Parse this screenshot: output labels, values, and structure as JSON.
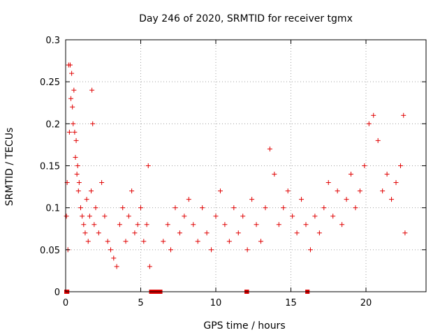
{
  "chart_data": {
    "type": "scatter",
    "title": "Day 246 of 2020, SRMTID for receiver tgmx",
    "xlabel": "GPS time / hours",
    "ylabel": "SRMTID / TECUs",
    "xlim": [
      0,
      24
    ],
    "ylim": [
      0,
      0.3
    ],
    "x_ticks": [
      0,
      5,
      10,
      15,
      20
    ],
    "x_tick_labels": [
      "0",
      "5",
      "10",
      "15",
      "20"
    ],
    "y_ticks": [
      0,
      0.05,
      0.1,
      0.15,
      0.2,
      0.25,
      0.3
    ],
    "y_tick_labels": [
      "0",
      "0.05",
      "0.1",
      "0.15",
      "0.2",
      "0.25",
      "0.3"
    ],
    "grid": true,
    "marker": "plus",
    "color": "#e00000",
    "series": [
      {
        "name": "SRMTID",
        "points": [
          [
            0.05,
            0.09
          ],
          [
            0.1,
            0.13
          ],
          [
            0.15,
            0.05
          ],
          [
            0.2,
            0.27
          ],
          [
            0.25,
            0.19
          ],
          [
            0.3,
            0.27
          ],
          [
            0.35,
            0.23
          ],
          [
            0.4,
            0.26
          ],
          [
            0.45,
            0.22
          ],
          [
            0.5,
            0.2
          ],
          [
            0.55,
            0.24
          ],
          [
            0.6,
            0.19
          ],
          [
            0.65,
            0.16
          ],
          [
            0.7,
            0.18
          ],
          [
            0.75,
            0.14
          ],
          [
            0.8,
            0.15
          ],
          [
            0.85,
            0.12
          ],
          [
            0.9,
            0.13
          ],
          [
            1.0,
            0.1
          ],
          [
            1.1,
            0.09
          ],
          [
            1.2,
            0.08
          ],
          [
            1.3,
            0.07
          ],
          [
            1.4,
            0.11
          ],
          [
            1.5,
            0.06
          ],
          [
            1.6,
            0.09
          ],
          [
            1.7,
            0.12
          ],
          [
            1.75,
            0.24
          ],
          [
            1.8,
            0.2
          ],
          [
            1.9,
            0.08
          ],
          [
            2.0,
            0.1
          ],
          [
            2.2,
            0.07
          ],
          [
            2.4,
            0.13
          ],
          [
            2.6,
            0.09
          ],
          [
            2.8,
            0.06
          ],
          [
            3.0,
            0.05
          ],
          [
            3.2,
            0.04
          ],
          [
            3.4,
            0.03
          ],
          [
            3.6,
            0.08
          ],
          [
            3.8,
            0.1
          ],
          [
            4.0,
            0.06
          ],
          [
            4.2,
            0.09
          ],
          [
            4.4,
            0.12
          ],
          [
            4.6,
            0.07
          ],
          [
            4.8,
            0.08
          ],
          [
            5.0,
            0.1
          ],
          [
            5.2,
            0.06
          ],
          [
            5.4,
            0.08
          ],
          [
            5.5,
            0.15
          ],
          [
            5.6,
            0.03
          ],
          [
            6.5,
            0.06
          ],
          [
            6.8,
            0.08
          ],
          [
            7.0,
            0.05
          ],
          [
            7.3,
            0.1
          ],
          [
            7.6,
            0.07
          ],
          [
            7.9,
            0.09
          ],
          [
            8.2,
            0.11
          ],
          [
            8.5,
            0.08
          ],
          [
            8.8,
            0.06
          ],
          [
            9.1,
            0.1
          ],
          [
            9.4,
            0.07
          ],
          [
            9.7,
            0.05
          ],
          [
            10.0,
            0.09
          ],
          [
            10.3,
            0.12
          ],
          [
            10.6,
            0.08
          ],
          [
            10.9,
            0.06
          ],
          [
            11.2,
            0.1
          ],
          [
            11.5,
            0.07
          ],
          [
            11.8,
            0.09
          ],
          [
            12.1,
            0.05
          ],
          [
            12.4,
            0.11
          ],
          [
            12.7,
            0.08
          ],
          [
            13.0,
            0.06
          ],
          [
            13.3,
            0.1
          ],
          [
            13.6,
            0.17
          ],
          [
            13.9,
            0.14
          ],
          [
            14.2,
            0.08
          ],
          [
            14.5,
            0.1
          ],
          [
            14.8,
            0.12
          ],
          [
            15.1,
            0.09
          ],
          [
            15.4,
            0.07
          ],
          [
            15.7,
            0.11
          ],
          [
            16.0,
            0.08
          ],
          [
            16.3,
            0.05
          ],
          [
            16.6,
            0.09
          ],
          [
            16.9,
            0.07
          ],
          [
            17.2,
            0.1
          ],
          [
            17.5,
            0.13
          ],
          [
            17.8,
            0.09
          ],
          [
            18.1,
            0.12
          ],
          [
            18.4,
            0.08
          ],
          [
            18.7,
            0.11
          ],
          [
            19.0,
            0.14
          ],
          [
            19.3,
            0.1
          ],
          [
            19.6,
            0.12
          ],
          [
            19.9,
            0.15
          ],
          [
            20.2,
            0.2
          ],
          [
            20.5,
            0.21
          ],
          [
            20.8,
            0.18
          ],
          [
            21.1,
            0.12
          ],
          [
            21.4,
            0.14
          ],
          [
            21.7,
            0.11
          ],
          [
            22.0,
            0.13
          ],
          [
            22.3,
            0.15
          ],
          [
            22.5,
            0.21
          ],
          [
            22.6,
            0.07
          ]
        ]
      }
    ],
    "zero_segments": [
      [
        0.0,
        0.15
      ],
      [
        5.65,
        6.35
      ],
      [
        12.0,
        12.12
      ],
      [
        16.05,
        16.15
      ]
    ]
  }
}
